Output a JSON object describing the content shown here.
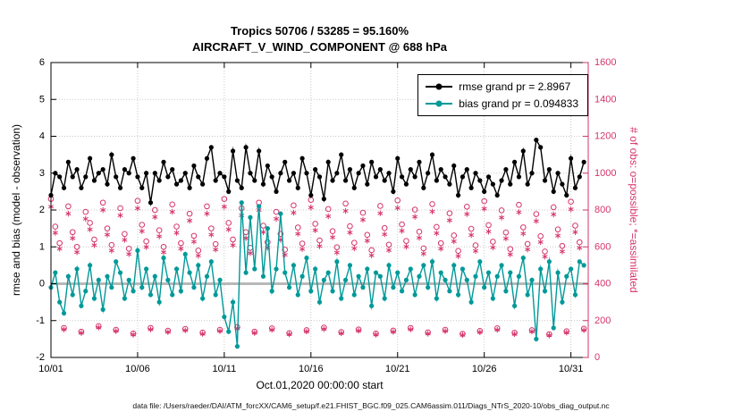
{
  "chart_data": {
    "type": "line",
    "title": "Tropics 50706 / 53285 = 95.160%",
    "subtitle": "AIRCRAFT_V_WIND_COMPONENT @ 688 hPa",
    "xlabel": "Oct.01,2020 00:00:00 start",
    "ylabel_left": "rmse and bias (model - observation)",
    "ylabel_right": "# of obs: o=possible; *=assimilated",
    "caption": "data file: /Users/raeder/DAI/ATM_forcXX/CAM6_setup/f.e21.FHIST_BGC.f09_025.CAM6assim.011/Diags_NTrS_2020-10/obs_diag_output.nc",
    "ylim_left": [
      -2,
      6
    ],
    "yticks_left": [
      -2,
      -1,
      0,
      1,
      2,
      3,
      4,
      5,
      6
    ],
    "ylim_right": [
      0,
      1600
    ],
    "yticks_right": [
      0,
      200,
      400,
      600,
      800,
      1000,
      1200,
      1400,
      1600
    ],
    "xlim_days": [
      0,
      31
    ],
    "xticks": [
      {
        "day": 0,
        "label": "10/01"
      },
      {
        "day": 5,
        "label": "10/06"
      },
      {
        "day": 10,
        "label": "10/11"
      },
      {
        "day": 15,
        "label": "10/16"
      },
      {
        "day": 20,
        "label": "10/21"
      },
      {
        "day": 25,
        "label": "10/26"
      },
      {
        "day": 30,
        "label": "10/31"
      }
    ],
    "time_step_days": 0.25,
    "grid": true,
    "legend_position": "top-right-inside",
    "colors": {
      "rmse": "#000000",
      "bias": "#009999",
      "obs": "#d6336c",
      "zero_line": "#b8b8b8",
      "grid": "#c8c8c8"
    },
    "legend": [
      {
        "series": "rmse",
        "label": "rmse grand pr = 2.8967"
      },
      {
        "series": "bias",
        "label": "bias grand pr = 0.094833"
      }
    ],
    "series": [
      {
        "name": "rmse",
        "axis": "left",
        "marker": "dot-line",
        "values": [
          2.4,
          3.0,
          2.9,
          2.6,
          3.3,
          2.9,
          3.1,
          2.6,
          2.9,
          3.4,
          2.8,
          3.0,
          3.1,
          2.7,
          3.5,
          2.9,
          2.6,
          3.1,
          3.0,
          3.4,
          2.9,
          2.6,
          3.0,
          2.2,
          3.0,
          2.8,
          3.3,
          2.9,
          3.1,
          2.7,
          2.8,
          3.0,
          2.6,
          3.2,
          2.9,
          2.7,
          3.4,
          3.7,
          2.8,
          3.0,
          2.9,
          2.5,
          3.6,
          2.8,
          2.6,
          3.7,
          3.0,
          2.8,
          3.6,
          2.7,
          3.2,
          2.9,
          2.5,
          3.0,
          3.3,
          2.8,
          3.0,
          2.6,
          3.4,
          3.0,
          2.4,
          3.1,
          2.9,
          2.3,
          3.3,
          2.8,
          3.0,
          3.5,
          2.8,
          3.1,
          2.6,
          3.0,
          3.2,
          2.7,
          3.3,
          2.9,
          3.1,
          2.8,
          3.0,
          2.5,
          3.4,
          2.9,
          2.7,
          3.1,
          2.9,
          3.3,
          2.6,
          3.0,
          3.5,
          2.8,
          3.1,
          2.9,
          2.7,
          3.2,
          2.4,
          2.9,
          3.1,
          2.6,
          3.0,
          2.8,
          2.5,
          2.9,
          2.7,
          2.4,
          2.8,
          3.1,
          2.7,
          3.3,
          2.9,
          3.6,
          2.7,
          3.0,
          3.9,
          3.7,
          2.8,
          3.1,
          2.5,
          3.0,
          2.7,
          2.4,
          3.4,
          2.6,
          2.9,
          3.3
        ]
      },
      {
        "name": "bias",
        "axis": "left",
        "marker": "dot-line",
        "values": [
          -0.1,
          0.3,
          -0.5,
          -0.8,
          0.2,
          -0.3,
          0.4,
          -0.6,
          -0.2,
          0.5,
          -0.4,
          0.1,
          -0.7,
          0.2,
          -0.1,
          0.6,
          0.3,
          -0.4,
          0.1,
          -0.2,
          0.9,
          -0.1,
          0.4,
          -0.3,
          0.2,
          -0.5,
          0.7,
          0.1,
          -0.3,
          0.4,
          -0.2,
          0.8,
          0.3,
          -0.1,
          0.5,
          -0.4,
          0.2,
          0.6,
          -0.3,
          0.1,
          -0.9,
          -1.3,
          -0.5,
          -1.7,
          2.2,
          0.3,
          1.8,
          0.4,
          2.1,
          0.2,
          1.5,
          -0.2,
          0.4,
          1.9,
          0.3,
          -0.1,
          0.5,
          -0.3,
          0.2,
          0.7,
          -0.2,
          0.4,
          -0.5,
          0.1,
          0.3,
          -0.2,
          0.6,
          -0.4,
          0.1,
          0.5,
          -0.3,
          0.2,
          -0.1,
          0.4,
          -0.6,
          0.3,
          0.2,
          -0.4,
          0.5,
          -0.1,
          0.3,
          -0.2,
          0.1,
          0.4,
          -0.3,
          0.2,
          0.5,
          -0.1,
          0.6,
          -0.4,
          0.3,
          0.1,
          -0.2,
          0.5,
          -0.3,
          0.4,
          0.1,
          -0.5,
          0.2,
          0.6,
          -0.1,
          0.3,
          -0.4,
          0.2,
          0.5,
          -0.2,
          0.3,
          -0.6,
          0.2,
          0.7,
          -0.3,
          0.1,
          -1.5,
          0.4,
          -0.2,
          0.6,
          -1.2,
          0.3,
          -0.5,
          0.2,
          0.4,
          -0.3,
          0.6,
          0.5
        ]
      },
      {
        "name": "possible_obs",
        "axis": "right",
        "marker": "open-circle",
        "values": [
          860,
          710,
          620,
          160,
          820,
          680,
          600,
          140,
          790,
          730,
          640,
          170,
          840,
          700,
          610,
          150,
          810,
          670,
          590,
          130,
          850,
          720,
          630,
          160,
          800,
          690,
          600,
          145,
          830,
          710,
          620,
          155,
          780,
          660,
          580,
          135,
          820,
          700,
          615,
          150,
          860,
          730,
          640,
          165,
          810,
          680,
          595,
          140,
          840,
          715,
          625,
          158,
          790,
          670,
          585,
          132,
          825,
          705,
          618,
          148,
          855,
          725,
          635,
          162,
          805,
          685,
          598,
          138,
          835,
          712,
          622,
          152,
          785,
          665,
          582,
          130,
          822,
          702,
          612,
          146,
          852,
          722,
          632,
          160,
          802,
          682,
          592,
          136,
          832,
          708,
          620,
          150,
          782,
          662,
          578,
          128,
          818,
          698,
          608,
          144,
          848,
          718,
          628,
          158,
          798,
          678,
          588,
          134,
          828,
          706,
          616,
          148,
          778,
          658,
          575,
          126,
          815,
          695,
          605,
          142,
          845,
          715,
          625,
          156
        ]
      },
      {
        "name": "assimilated_obs",
        "axis": "right",
        "marker": "asterisk",
        "values": [
          818,
          676,
          590,
          152,
          780,
          647,
          571,
          133,
          752,
          695,
          609,
          162,
          800,
          666,
          580,
          143,
          771,
          638,
          561,
          124,
          809,
          685,
          599,
          152,
          762,
          657,
          571,
          138,
          790,
          676,
          590,
          147,
          742,
          628,
          552,
          128,
          780,
          666,
          585,
          143,
          818,
          695,
          609,
          157,
          771,
          647,
          566,
          133,
          800,
          680,
          595,
          150,
          752,
          638,
          557,
          126,
          785,
          671,
          588,
          141,
          814,
          690,
          604,
          154,
          766,
          652,
          569,
          131,
          795,
          678,
          592,
          145,
          747,
          633,
          554,
          124,
          782,
          668,
          582,
          139,
          811,
          687,
          601,
          152,
          763,
          649,
          563,
          129,
          792,
          674,
          590,
          143,
          744,
          630,
          550,
          122,
          778,
          664,
          578,
          137,
          807,
          683,
          597,
          150,
          759,
          645,
          559,
          127,
          788,
          672,
          586,
          141,
          740,
          626,
          547,
          120,
          776,
          661,
          575,
          135,
          804,
          680,
          595,
          148
        ]
      }
    ]
  }
}
